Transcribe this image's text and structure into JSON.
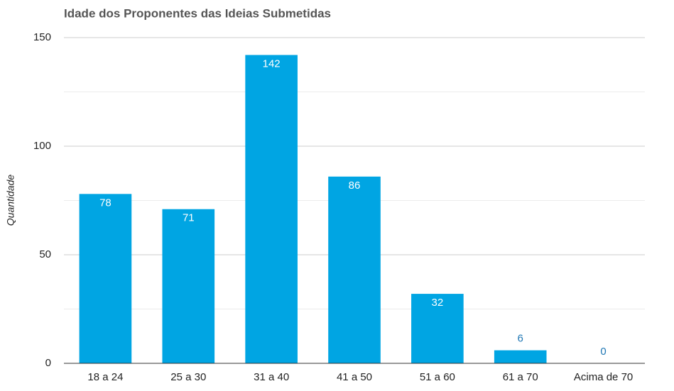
{
  "chart_data": {
    "type": "bar",
    "title": "Idade dos Proponentes das Ideias Submetidas",
    "y_label": "Quantidade",
    "categories": [
      "18 a 24",
      "25 a 30",
      "31 a 40",
      "41 a 50",
      "51 a 60",
      "61 a 70",
      "Acima de 70"
    ],
    "values": [
      78,
      71,
      142,
      86,
      32,
      6,
      0
    ],
    "color": "#00a5e3",
    "ylim": [
      0,
      150
    ],
    "yticks": [
      0,
      50,
      100,
      150
    ],
    "minor_yticks": [
      25,
      75,
      125
    ],
    "grid": true
  }
}
